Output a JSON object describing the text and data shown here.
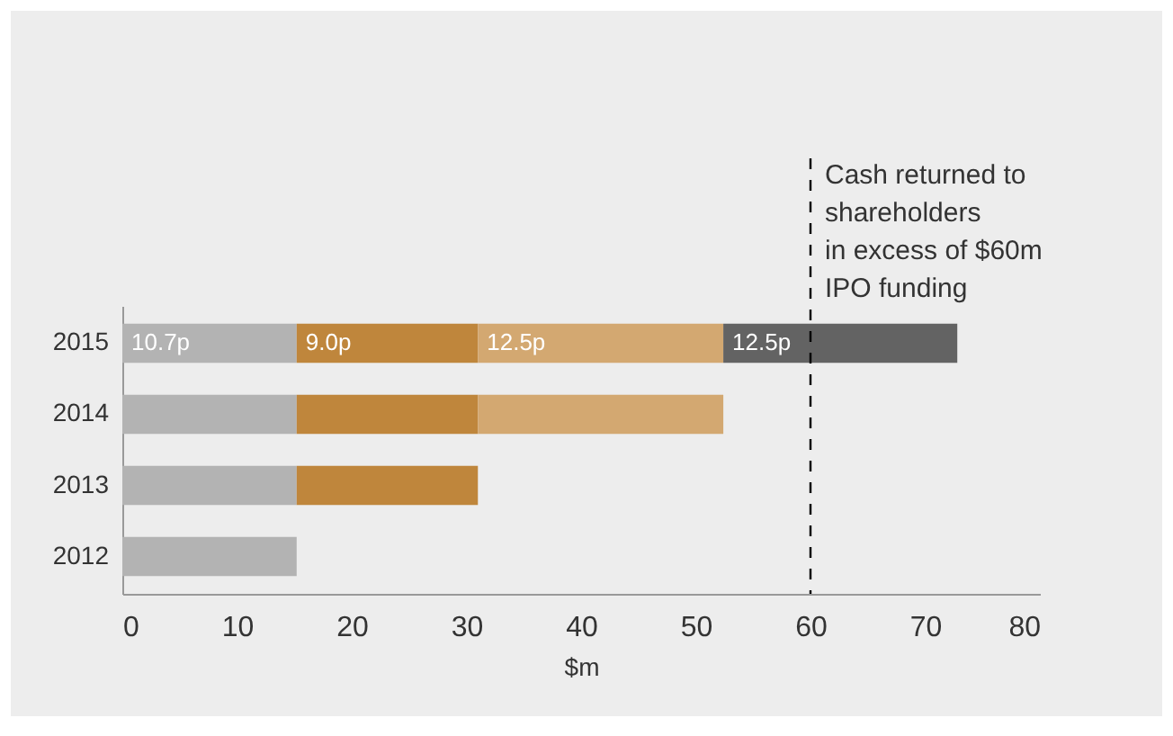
{
  "chart_data": {
    "type": "bar",
    "orientation": "horizontal",
    "stacked": true,
    "xlabel": "$m",
    "categories": [
      "2015",
      "2014",
      "2013",
      "2012"
    ],
    "series": [
      {
        "color": "#b3b3b3",
        "values": [
          15.2,
          15.2,
          15.2,
          15.2
        ]
      },
      {
        "color": "#bf863c",
        "values": [
          15.8,
          15.8,
          15.8,
          null
        ]
      },
      {
        "color": "#d3a871",
        "values": [
          21.4,
          21.4,
          null,
          null
        ]
      },
      {
        "color": "#636363",
        "values": [
          20.4,
          null,
          null,
          null
        ]
      }
    ],
    "annotations": [
      {
        "text": "10.7p",
        "x": 0,
        "y": "2015"
      },
      {
        "text": "9.0p",
        "x": 15.2,
        "y": "2015"
      },
      {
        "text": "12.5p",
        "x": 31,
        "y": "2015"
      },
      {
        "text": "12.5p",
        "x": 52.4,
        "y": "2015"
      }
    ],
    "xlim": [
      0,
      80
    ],
    "xticks": [
      0,
      10,
      20,
      30,
      40,
      50,
      60,
      70,
      80
    ],
    "grid": false,
    "ref_lines": [
      {
        "axis": "x",
        "value": 60,
        "label": "Cash returned to\nshareholders\nin excess of $60m\nIPO funding",
        "color": "#000000",
        "line_style": "dashed"
      }
    ]
  }
}
